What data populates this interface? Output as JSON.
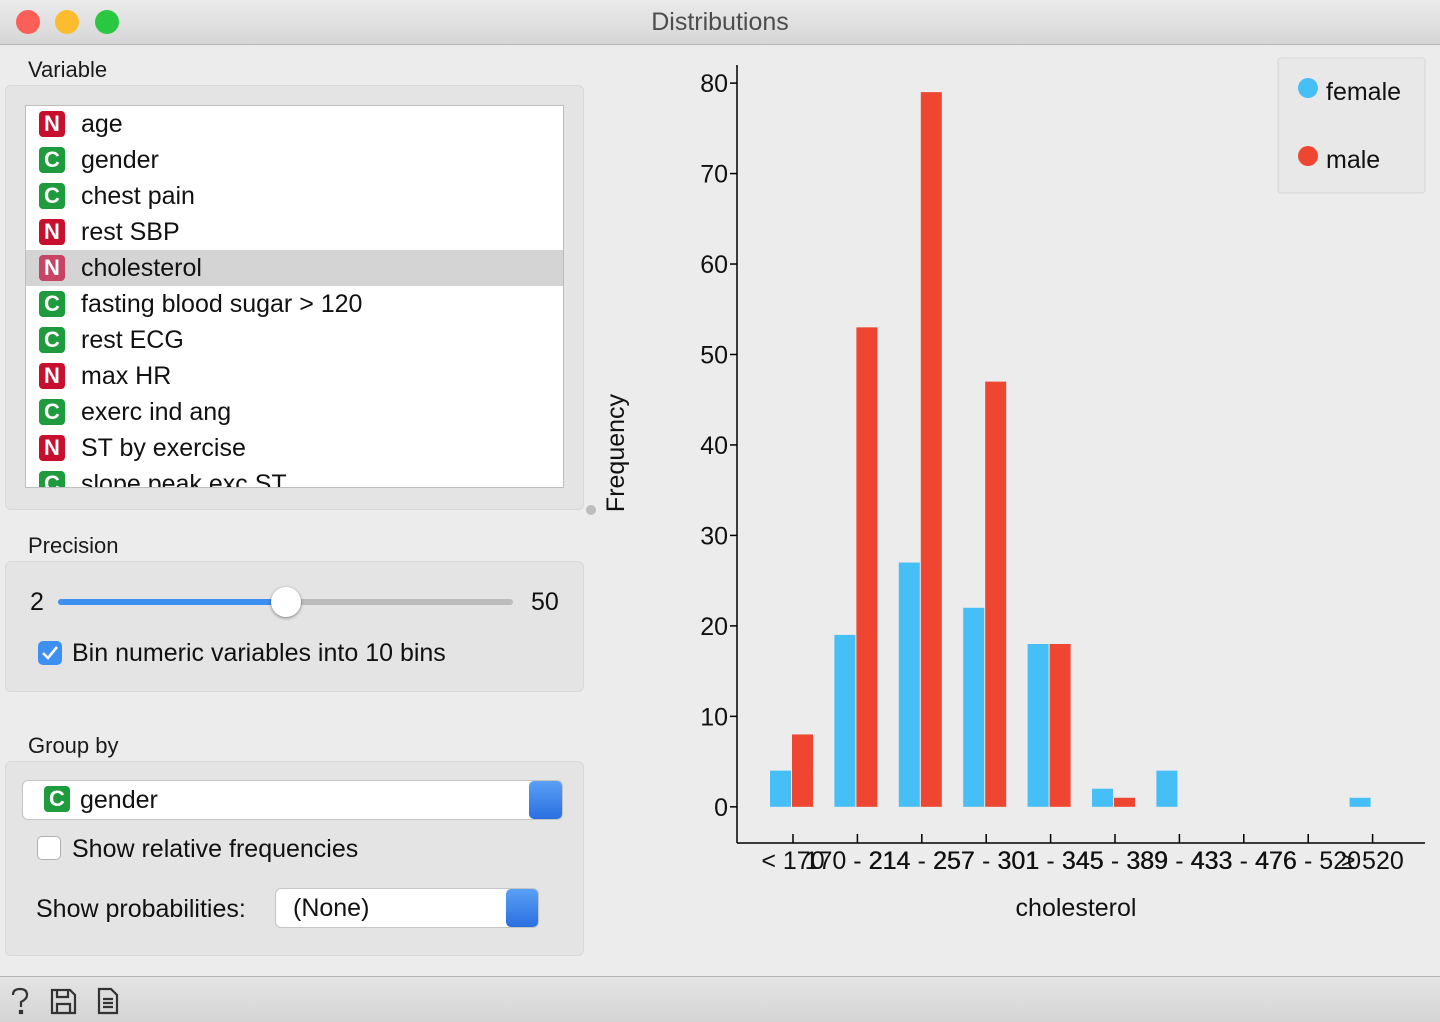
{
  "window": {
    "title": "Distributions"
  },
  "variable_panel": {
    "label": "Variable",
    "items": [
      {
        "type": "N",
        "name": "age"
      },
      {
        "type": "C",
        "name": "gender"
      },
      {
        "type": "C",
        "name": "chest pain"
      },
      {
        "type": "N",
        "name": "rest SBP"
      },
      {
        "type": "N",
        "name": "cholesterol",
        "selected": true
      },
      {
        "type": "C",
        "name": "fasting blood sugar > 120"
      },
      {
        "type": "C",
        "name": "rest ECG"
      },
      {
        "type": "N",
        "name": "max HR"
      },
      {
        "type": "C",
        "name": "exerc ind ang"
      },
      {
        "type": "N",
        "name": "ST by exercise"
      },
      {
        "type": "C",
        "name": "slope peak exc ST"
      }
    ]
  },
  "precision": {
    "label": "Precision",
    "min": 2,
    "max": 50,
    "value": 26,
    "checkbox": {
      "label": "Bin numeric variables into 10 bins",
      "checked": true
    }
  },
  "group_by": {
    "label": "Group by",
    "selected": {
      "type": "C",
      "name": "gender"
    },
    "relative": {
      "label": "Show relative frequencies",
      "checked": false
    },
    "probabilities": {
      "label": "Show probabilities:",
      "value": "(None)"
    }
  },
  "chart_data": {
    "type": "bar",
    "xlabel": "cholesterol",
    "ylabel": "Frequency",
    "categories": [
      "< 170",
      "170 - 214",
      "214 - 257",
      "257 - 301",
      "301 - 345",
      "345 - 389",
      "389 - 433",
      "433 - 476",
      "476 - 520",
      "≥ 520"
    ],
    "series": [
      {
        "name": "female",
        "color": "#45bff5",
        "values": [
          4,
          19,
          27,
          22,
          18,
          2,
          4,
          0,
          0,
          1
        ]
      },
      {
        "name": "male",
        "color": "#ee4630",
        "values": [
          8,
          53,
          79,
          47,
          18,
          1,
          0,
          0,
          0,
          0
        ]
      }
    ],
    "ylim": [
      -4,
      82
    ],
    "yticks": [
      0,
      10,
      20,
      30,
      40,
      50,
      60,
      70,
      80
    ],
    "legend": "upper right"
  }
}
